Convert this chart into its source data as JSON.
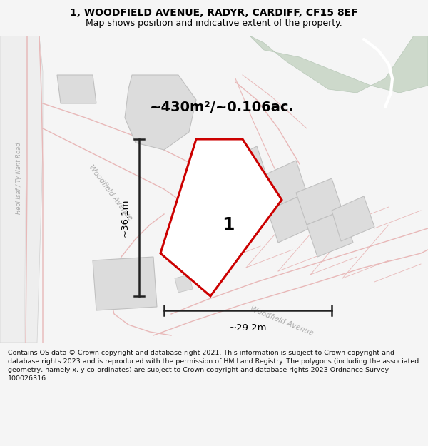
{
  "title_line1": "1, WOODFIELD AVENUE, RADYR, CARDIFF, CF15 8EF",
  "title_line2": "Map shows position and indicative extent of the property.",
  "area_text": "~430m²/~0.106ac.",
  "dim_width": "~29.2m",
  "dim_height": "~36.1m",
  "plot_label": "1",
  "footer_text": "Contains OS data © Crown copyright and database right 2021. This information is subject to Crown copyright and database rights 2023 and is reproduced with the permission of HM Land Registry. The polygons (including the associated geometry, namely x, y co-ordinates) are subject to Crown copyright and database rights 2023 Ordnance Survey 100026316.",
  "bg_color": "#f5f5f5",
  "map_bg": "#ffffff",
  "road_line_color": "#e8b8b8",
  "green_area_color": "#cdd9cb",
  "green_area_edge": "#b8c8b8",
  "building_color": "#dcdcdc",
  "building_outline": "#c0c0c0",
  "plot_fill": "#ffffff",
  "plot_outline": "#cc0000",
  "dim_color": "#222222",
  "road_label_color": "#aaaaaa",
  "left_road_color": "#e8e8e8",
  "left_road_edge": "#cccccc"
}
